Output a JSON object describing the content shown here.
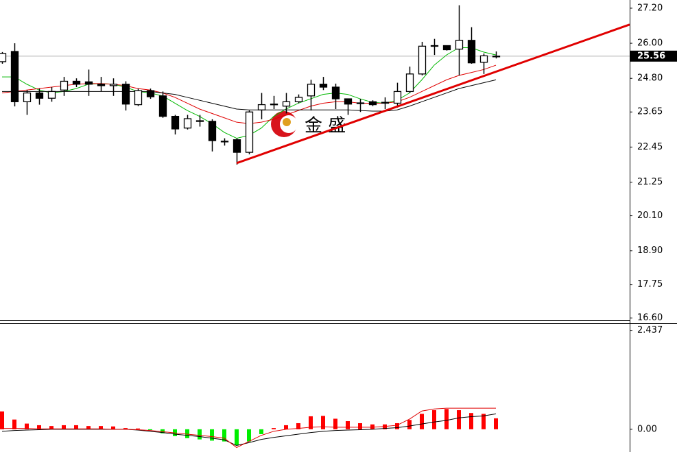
{
  "chart_data": [
    {
      "type": "candlestick",
      "watermark": "金 盛",
      "categories": [
        null,
        null,
        null,
        null,
        null,
        null,
        null,
        null,
        null,
        null,
        null,
        null,
        null,
        null,
        null,
        null,
        null,
        null,
        null,
        null,
        null,
        null,
        null,
        null,
        null,
        null,
        null,
        null,
        null,
        null,
        null,
        null,
        null,
        null,
        null,
        null,
        null,
        null,
        null,
        null,
        null
      ],
      "open": [
        25.37,
        25.72,
        24.0,
        24.3,
        24.12,
        24.4,
        24.7,
        24.68,
        24.6,
        24.55,
        24.6,
        23.9,
        24.38,
        24.2,
        23.5,
        23.1,
        23.35,
        23.33,
        22.65,
        22.7,
        22.27,
        23.72,
        23.9,
        23.85,
        24.0,
        24.2,
        24.6,
        24.5,
        24.1,
        23.96,
        24.0,
        23.95,
        23.95,
        24.35,
        24.95,
        25.9,
        25.92,
        25.8,
        26.1,
        25.35,
        25.56
      ],
      "high": [
        25.7,
        26.0,
        24.4,
        24.45,
        24.5,
        24.85,
        24.8,
        25.1,
        24.85,
        24.8,
        24.7,
        24.45,
        24.45,
        24.35,
        23.55,
        23.55,
        23.55,
        23.4,
        22.75,
        22.75,
        23.7,
        24.3,
        24.2,
        24.3,
        24.25,
        24.75,
        24.85,
        24.62,
        24.1,
        24.1,
        24.05,
        24.15,
        24.65,
        25.2,
        26.05,
        26.15,
        25.85,
        27.3,
        26.55,
        25.65,
        25.72
      ],
      "low": [
        25.3,
        23.84,
        23.55,
        23.9,
        24.0,
        24.2,
        24.5,
        24.2,
        24.35,
        24.2,
        23.7,
        23.85,
        24.1,
        23.45,
        22.88,
        23.05,
        23.15,
        22.3,
        22.5,
        21.85,
        22.2,
        23.4,
        23.75,
        23.6,
        23.95,
        23.7,
        24.4,
        23.75,
        23.55,
        23.65,
        23.85,
        23.75,
        23.8,
        24.3,
        24.9,
        25.6,
        25.75,
        24.9,
        25.3,
        24.95,
        25.48
      ],
      "close": [
        25.65,
        24.0,
        24.3,
        24.12,
        24.35,
        24.7,
        24.6,
        24.6,
        24.55,
        24.6,
        23.92,
        24.38,
        24.17,
        23.5,
        23.07,
        23.42,
        23.33,
        22.67,
        22.63,
        22.27,
        23.65,
        23.9,
        23.92,
        24.0,
        24.15,
        24.6,
        24.5,
        24.1,
        23.92,
        23.95,
        23.9,
        23.98,
        24.35,
        24.95,
        25.9,
        25.92,
        25.78,
        26.1,
        25.33,
        25.57,
        25.56
      ],
      "up_color": "#ffffff",
      "down_color": "#000000",
      "series": [
        {
          "color": "#00b800",
          "values": [
            24.85,
            24.85,
            24.6,
            24.4,
            24.3,
            24.35,
            24.45,
            24.6,
            24.62,
            24.6,
            24.5,
            24.35,
            24.3,
            24.2,
            23.95,
            23.7,
            23.5,
            23.25,
            22.95,
            22.75,
            22.85,
            23.1,
            23.5,
            23.75,
            23.95,
            24.1,
            24.25,
            24.3,
            24.25,
            24.1,
            23.98,
            23.95,
            24.05,
            24.3,
            24.75,
            25.25,
            25.6,
            25.85,
            25.85,
            25.7,
            25.6
          ]
        },
        {
          "color": "#e00000",
          "values": [
            24.3,
            24.35,
            24.4,
            24.45,
            24.5,
            24.55,
            24.6,
            24.62,
            24.62,
            24.6,
            24.55,
            24.45,
            24.4,
            24.3,
            24.15,
            23.95,
            23.75,
            23.6,
            23.45,
            23.3,
            23.25,
            23.3,
            23.4,
            23.55,
            23.7,
            23.85,
            23.95,
            24.0,
            24.0,
            23.95,
            23.95,
            23.95,
            24.0,
            24.15,
            24.35,
            24.55,
            24.75,
            24.9,
            25.0,
            25.1,
            25.25
          ]
        },
        {
          "color": "#000000",
          "values": [
            24.35,
            24.35,
            24.35,
            24.35,
            24.35,
            24.35,
            24.35,
            24.35,
            24.35,
            24.35,
            24.35,
            24.35,
            24.35,
            24.3,
            24.25,
            24.15,
            24.05,
            23.95,
            23.85,
            23.75,
            23.72,
            23.72,
            23.72,
            23.72,
            23.72,
            23.72,
            23.72,
            23.72,
            23.72,
            23.7,
            23.68,
            23.68,
            23.72,
            23.85,
            24.0,
            24.15,
            24.3,
            24.45,
            24.55,
            24.65,
            24.75
          ]
        }
      ],
      "trendline": {
        "color": "#e00000",
        "x": [
          19,
          50.83
        ],
        "y": [
          21.9,
          26.64
        ]
      },
      "last_price": {
        "value": 25.56,
        "label": "25.56"
      },
      "ylim": [
        16.5,
        27.48
      ],
      "yticks": [
        {
          "value": 27.2,
          "label": "27.20"
        },
        {
          "value": 26.0,
          "label": "26.00"
        },
        {
          "value": 24.8,
          "label": "24.80"
        },
        23.65,
        22.45,
        21.25,
        {
          "value": 20.1,
          "label": "20.10"
        },
        {
          "value": 18.9,
          "label": "18.90"
        },
        17.75,
        {
          "value": 16.6,
          "label": "16.60"
        }
      ]
    },
    {
      "type": "macd",
      "values": [
        0.44,
        0.24,
        0.14,
        0.1,
        0.08,
        0.1,
        0.1,
        0.08,
        0.08,
        0.07,
        0.03,
        0.02,
        -0.02,
        -0.1,
        -0.17,
        -0.22,
        -0.25,
        -0.28,
        -0.3,
        -0.4,
        -0.3,
        -0.12,
        0.03,
        0.1,
        0.15,
        0.32,
        0.33,
        0.26,
        0.2,
        0.15,
        0.12,
        0.12,
        0.15,
        0.23,
        0.38,
        0.47,
        0.5,
        0.47,
        0.4,
        0.38,
        0.27
      ],
      "up_color": "#ff0000",
      "down_color": "#00ee00",
      "series": [
        {
          "color": "#000000",
          "values": [
            -0.05,
            -0.03,
            -0.02,
            -0.01,
            0,
            0,
            0,
            0,
            0,
            0,
            0,
            -0.02,
            -0.05,
            -0.08,
            -0.12,
            -0.15,
            -0.18,
            -0.22,
            -0.26,
            -0.4,
            -0.33,
            -0.25,
            -0.2,
            -0.16,
            -0.12,
            -0.08,
            -0.05,
            -0.03,
            -0.02,
            -0.01,
            0,
            0.02,
            0.04,
            0.08,
            0.13,
            0.18,
            0.22,
            0.28,
            0.31,
            0.33,
            0.38
          ]
        },
        {
          "color": "#e00000",
          "values": [
            0.02,
            0.02,
            0.02,
            0.01,
            0.01,
            0.01,
            0.01,
            0.01,
            0.01,
            0,
            0,
            -0.01,
            -0.03,
            -0.06,
            -0.09,
            -0.12,
            -0.15,
            -0.18,
            -0.22,
            -0.45,
            -0.3,
            -0.15,
            -0.05,
            0,
            0.02,
            0.05,
            0.06,
            0.05,
            0.05,
            0.05,
            0.05,
            0.07,
            0.1,
            0.25,
            0.45,
            0.5,
            0.52,
            0.52,
            0.52,
            0.52,
            0.52
          ]
        }
      ],
      "ylim": [
        -0.56,
        2.6
      ],
      "yticks": [
        2.437,
        {
          "value": 0,
          "label": "0.00"
        }
      ]
    }
  ]
}
